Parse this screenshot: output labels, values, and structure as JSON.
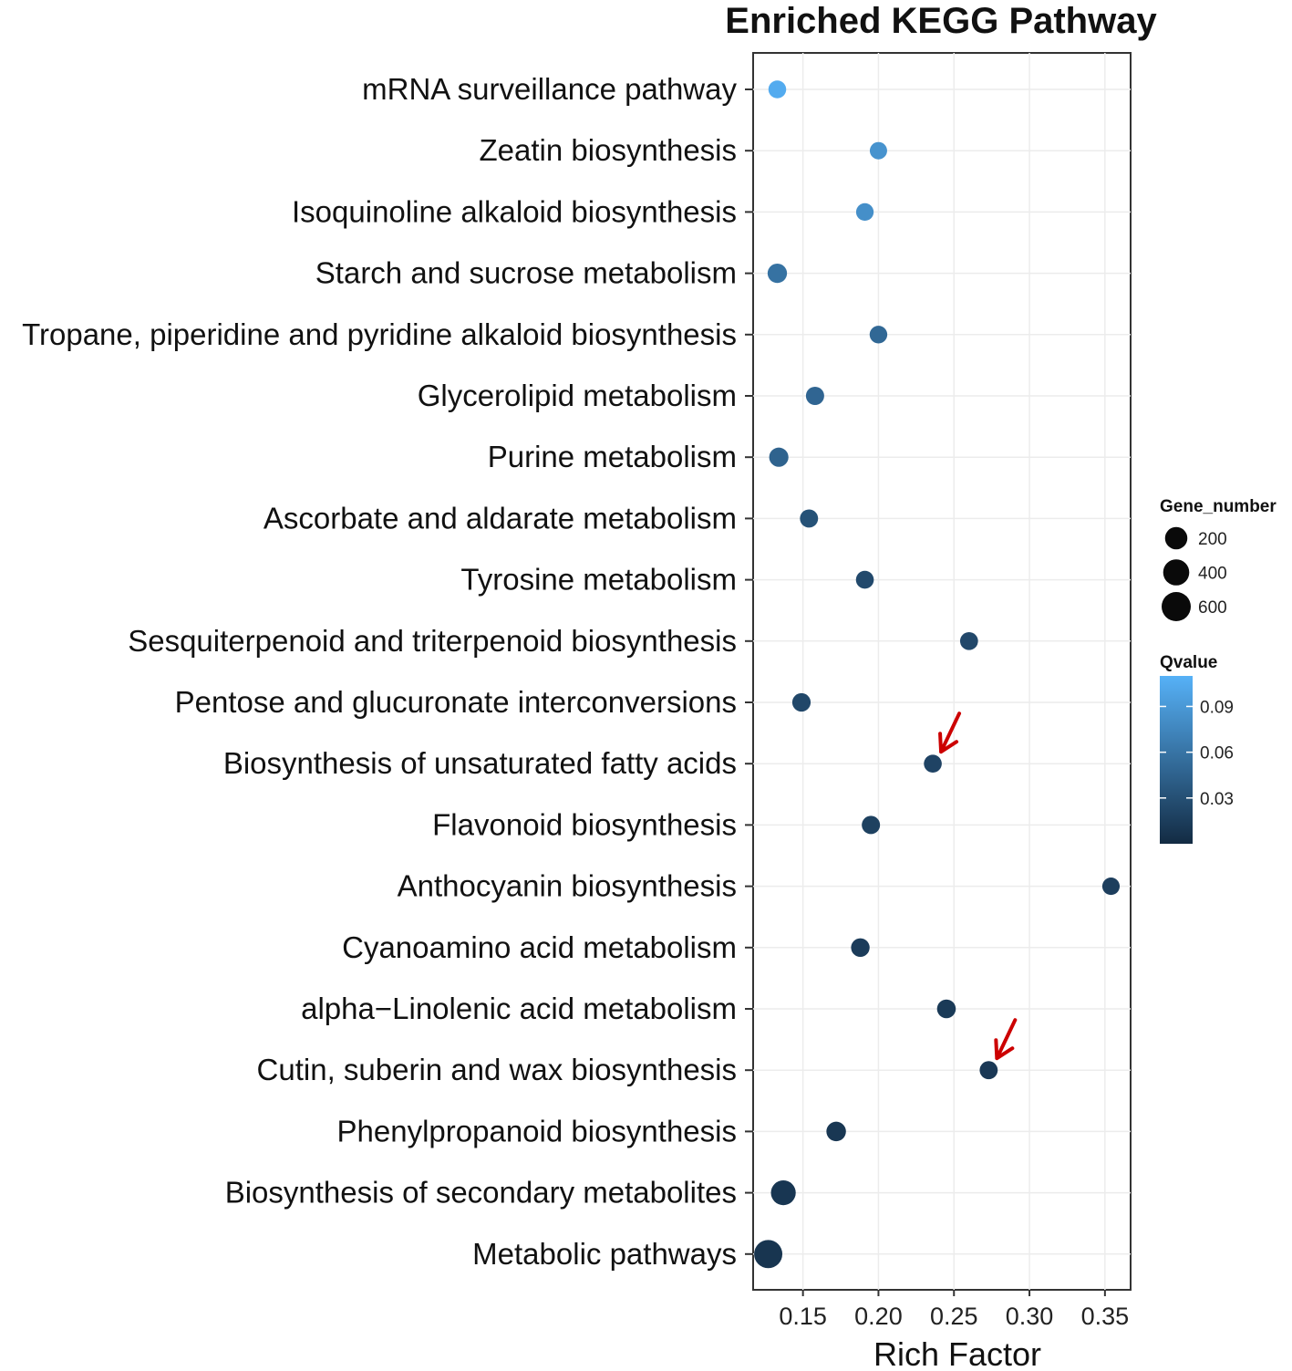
{
  "chart_data": {
    "type": "scatter",
    "title": "Enriched KEGG Pathway",
    "xlabel": "Rich Factor",
    "ylabel": "",
    "xlim": [
      0.117,
      0.367
    ],
    "xticks": [
      "0.15",
      "0.20",
      "0.25",
      "0.30",
      "0.35"
    ],
    "xtick_values": [
      0.15,
      0.2,
      0.25,
      0.3,
      0.35
    ],
    "categories": [
      "mRNA surveillance pathway",
      "Zeatin biosynthesis",
      "Isoquinoline alkaloid biosynthesis",
      "Starch and sucrose metabolism",
      "Tropane, piperidine and pyridine alkaloid biosynthesis",
      "Glycerolipid metabolism",
      "Purine metabolism",
      "Ascorbate and aldarate metabolism",
      "Tyrosine metabolism",
      "Sesquiterpenoid and triterpenoid biosynthesis",
      "Pentose and glucuronate interconversions",
      "Biosynthesis of unsaturated fatty acids",
      "Flavonoid biosynthesis",
      "Anthocyanin biosynthesis",
      "Cyanoamino acid metabolism",
      "alpha−Linolenic acid metabolism",
      "Cutin, suberin and wax biosynthesis",
      "Phenylpropanoid biosynthesis",
      "Biosynthesis of secondary metabolites",
      "Metabolic pathways"
    ],
    "rich_factor": [
      0.133,
      0.2,
      0.191,
      0.133,
      0.2,
      0.158,
      0.134,
      0.154,
      0.191,
      0.26,
      0.149,
      0.236,
      0.195,
      0.354,
      0.188,
      0.245,
      0.273,
      0.172,
      0.137,
      0.127
    ],
    "gene_number": [
      22,
      14,
      18,
      65,
      20,
      32,
      60,
      30,
      24,
      26,
      36,
      24,
      32,
      16,
      40,
      45,
      28,
      70,
      370,
      690
    ],
    "qvalue": [
      0.105,
      0.085,
      0.082,
      0.058,
      0.05,
      0.048,
      0.046,
      0.032,
      0.025,
      0.024,
      0.023,
      0.02,
      0.018,
      0.016,
      0.014,
      0.012,
      0.011,
      0.01,
      0.009,
      0.008
    ],
    "highlighted": [
      "Biosynthesis of unsaturated fatty acids",
      "Cutin, suberin and wax biosynthesis"
    ],
    "highlight_color": "#cc0000",
    "legend_size": {
      "title": "Gene_number",
      "entries": [
        {
          "label": "200",
          "value": 200
        },
        {
          "label": "400",
          "value": 400
        },
        {
          "label": "600",
          "value": 600
        }
      ]
    },
    "legend_color": {
      "title": "Qvalue",
      "min": 0.0,
      "max": 0.11,
      "ticks": [
        {
          "label": "0.09",
          "value": 0.09
        },
        {
          "label": "0.06",
          "value": 0.06
        },
        {
          "label": "0.03",
          "value": 0.03
        }
      ],
      "low_color": "#132b43",
      "high_color": "#56b1f7"
    },
    "grid": true,
    "legend_position": "right"
  }
}
